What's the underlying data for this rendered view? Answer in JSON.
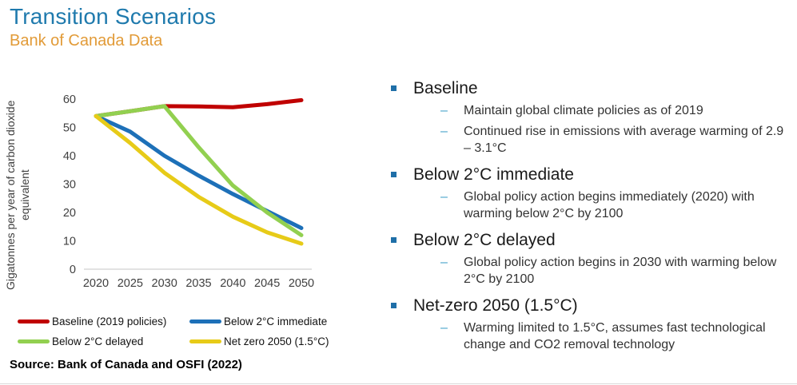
{
  "slide": {
    "title": "Transition Scenarios",
    "subtitle": "Bank of Canada Data",
    "source": "Source: Bank of Canada and OSFI (2022)"
  },
  "colors": {
    "title": "#1f7aad",
    "subtitle": "#e29b38",
    "axis_line": "#d9d9d9",
    "axis_text": "#404040",
    "square_bullet": "#1f6fa8",
    "dash_bullet": "#41a0c8"
  },
  "chart_data": {
    "type": "line",
    "title": "",
    "xlabel": "",
    "ylabel": "Gigatonnes per year of carbon dioxide equivalent",
    "x": [
      2020,
      2025,
      2030,
      2035,
      2040,
      2045,
      2050
    ],
    "yticks": [
      0,
      10,
      20,
      30,
      40,
      50,
      60
    ],
    "ylim": [
      0,
      62
    ],
    "grid": false,
    "legend_position": "bottom",
    "series": [
      {
        "name": "Baseline (2019 policies)",
        "color": "#c00000",
        "values": [
          54,
          55.7,
          57.5,
          57.4,
          57.1,
          58.2,
          59.6
        ]
      },
      {
        "name": "Below 2°C immediate",
        "color": "#1d70b8",
        "values": [
          54,
          48.5,
          40,
          33,
          26.5,
          20.5,
          14.5
        ]
      },
      {
        "name": "Below 2°C delayed",
        "color": "#92d050",
        "values": [
          54,
          55.7,
          57.5,
          43,
          29.5,
          20,
          12
        ]
      },
      {
        "name": "Net zero 2050 (1.5°C)",
        "color": "#e7cb18",
        "values": [
          54,
          44.5,
          34,
          25.5,
          18.5,
          13,
          9
        ]
      }
    ]
  },
  "bullets": [
    {
      "heading": "Baseline",
      "subs": [
        "Maintain global climate policies as of 2019",
        "Continued rise in emissions with average warming of 2.9 – 3.1°C"
      ]
    },
    {
      "heading": "Below 2°C immediate",
      "subs": [
        "Global policy action begins immediately (2020) with warming below 2°C by 2100"
      ]
    },
    {
      "heading": "Below 2°C delayed",
      "subs": [
        "Global policy action begins in 2030 with warming below 2°C by 2100"
      ]
    },
    {
      "heading": "Net-zero 2050 (1.5°C)",
      "subs": [
        "Warming limited to 1.5°C, assumes fast technological change and CO2 removal technology"
      ]
    }
  ]
}
